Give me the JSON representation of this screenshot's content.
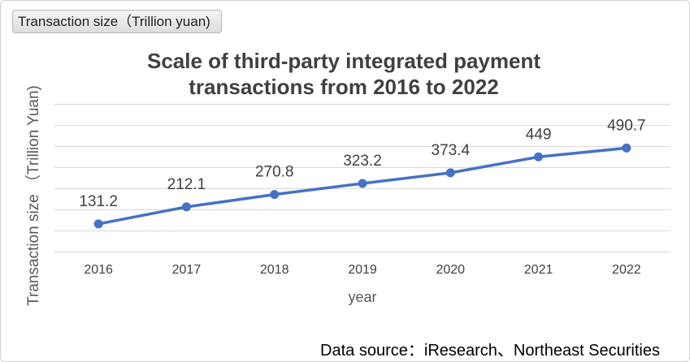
{
  "header": {
    "badge_text": "Transaction size（Trillion yuan)"
  },
  "source_note": "Data source：iResearch、Northeast Securities",
  "colors": {
    "series": "#4472c4",
    "grid": "#d9d9d9",
    "title": "#404040"
  },
  "chart_data": {
    "type": "line",
    "title_lines": [
      "Scale of third-party integrated payment",
      "transactions from 2016 to 2022"
    ],
    "xlabel": "year",
    "ylabel": "Transaction size （Trillion Yuan)",
    "categories": [
      "2016",
      "2017",
      "2018",
      "2019",
      "2020",
      "2021",
      "2022"
    ],
    "series": [
      {
        "values": [
          131.2,
          212.1,
          270.8,
          323.2,
          373.4,
          449,
          490.7
        ],
        "labels": [
          "131.2",
          "212.1",
          "270.8",
          "323.2",
          "373.4",
          "449",
          "490.7"
        ]
      }
    ],
    "ylim": [
      0,
      700
    ],
    "grid": true,
    "legend": "none"
  }
}
